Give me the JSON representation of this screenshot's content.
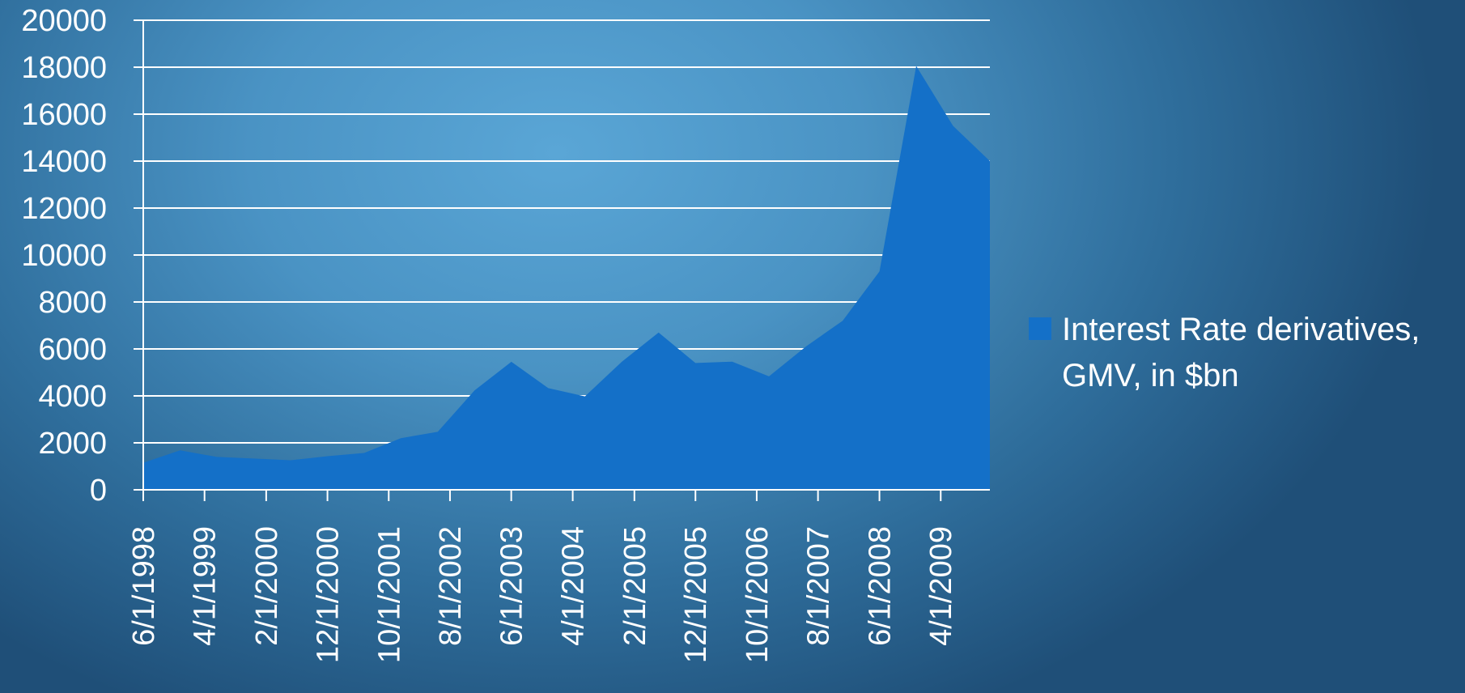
{
  "chart_data": {
    "type": "area",
    "x": [
      "6/1/1998",
      "12/1/1998",
      "6/1/1999",
      "12/1/1999",
      "6/1/2000",
      "12/1/2000",
      "6/1/2001",
      "12/1/2001",
      "6/1/2002",
      "12/1/2002",
      "6/1/2003",
      "12/1/2003",
      "6/1/2004",
      "12/1/2004",
      "6/1/2005",
      "12/1/2005",
      "6/1/2006",
      "12/1/2006",
      "6/1/2007",
      "12/1/2007",
      "6/1/2008",
      "12/1/2008",
      "6/1/2009",
      "12/1/2009"
    ],
    "x_tick_labels": [
      "6/1/1998",
      "4/1/1999",
      "2/1/2000",
      "12/1/2000",
      "10/1/2001",
      "8/1/2002",
      "6/1/2003",
      "4/1/2004",
      "2/1/2005",
      "12/1/2005",
      "10/1/2006",
      "8/1/2007",
      "6/1/2008",
      "4/1/2009"
    ],
    "series": [
      {
        "name": "Interest Rate derivatives, GMV, in $bn",
        "color": "#1470c8",
        "values": [
          1150,
          1680,
          1400,
          1330,
          1260,
          1430,
          1570,
          2200,
          2470,
          4230,
          5450,
          4330,
          3980,
          5450,
          6700,
          5400,
          5460,
          4830,
          6100,
          7200,
          9300,
          18050,
          15500,
          14000
        ]
      }
    ],
    "ylim": [
      0,
      20000
    ],
    "y_ticks": [
      "0",
      "2000",
      "4000",
      "6000",
      "8000",
      "10000",
      "12000",
      "14000",
      "16000",
      "18000",
      "20000"
    ],
    "grid": true,
    "legend_position": "right",
    "title": "",
    "xlabel": "",
    "ylabel": ""
  },
  "legend": {
    "line1": "Interest Rate derivatives,",
    "line2": "GMV, in $bn",
    "swatch_color": "#1470c8"
  },
  "colors": {
    "gridline": "#ffffff",
    "axis": "#ffffff",
    "area": "#1470c8"
  }
}
